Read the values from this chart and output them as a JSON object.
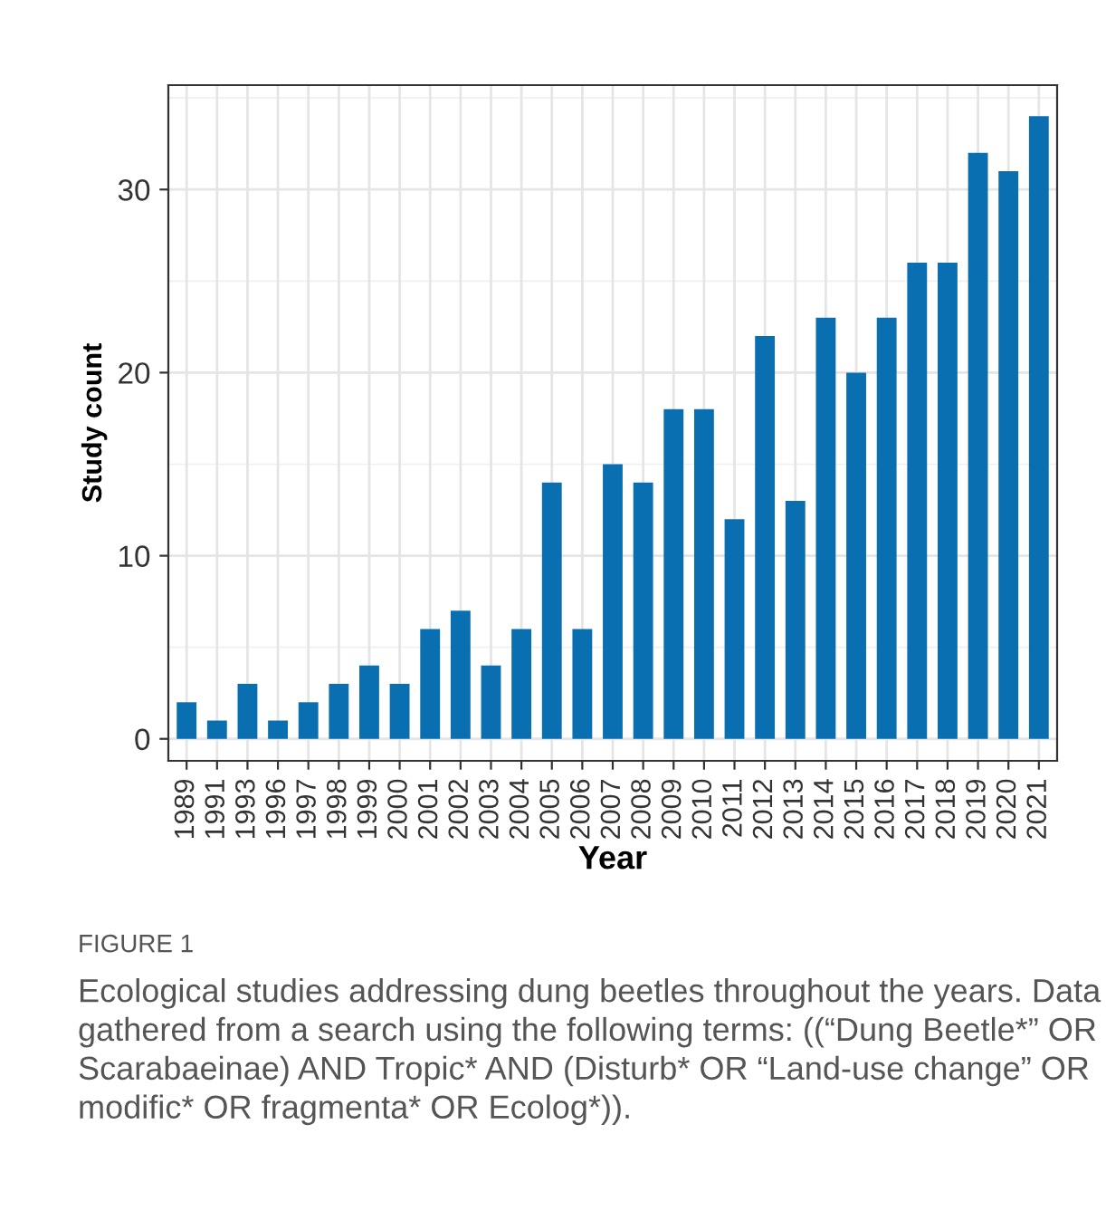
{
  "chart_data": {
    "type": "bar",
    "xlabel": "Year",
    "ylabel": "Study count",
    "categories": [
      "1989",
      "1991",
      "1993",
      "1996",
      "1997",
      "1998",
      "1999",
      "2000",
      "2001",
      "2002",
      "2003",
      "2004",
      "2005",
      "2006",
      "2007",
      "2008",
      "2009",
      "2010",
      "2011",
      "2012",
      "2013",
      "2014",
      "2015",
      "2016",
      "2017",
      "2018",
      "2019",
      "2020",
      "2021"
    ],
    "values": [
      2,
      1,
      3,
      1,
      2,
      3,
      4,
      3,
      6,
      7,
      4,
      6,
      14,
      6,
      15,
      14,
      18,
      18,
      12,
      22,
      13,
      23,
      20,
      23,
      26,
      26,
      32,
      31,
      34
    ],
    "color": "#0a6fb0",
    "ylim": [
      -1.2,
      35.7
    ],
    "yticks": [
      0,
      10,
      20,
      30
    ],
    "grid": true,
    "annotations": [
      "FIGURE 1",
      "Ecological studies addressing dung beetles throughout the years. Data gathered from a search using the following terms: ((“Dung Beetle*” OR Scarabaeinae) AND Tropic* AND (Disturb* OR “Land-use change” OR modific* OR fragmenta* OR Ecolog*))."
    ]
  }
}
